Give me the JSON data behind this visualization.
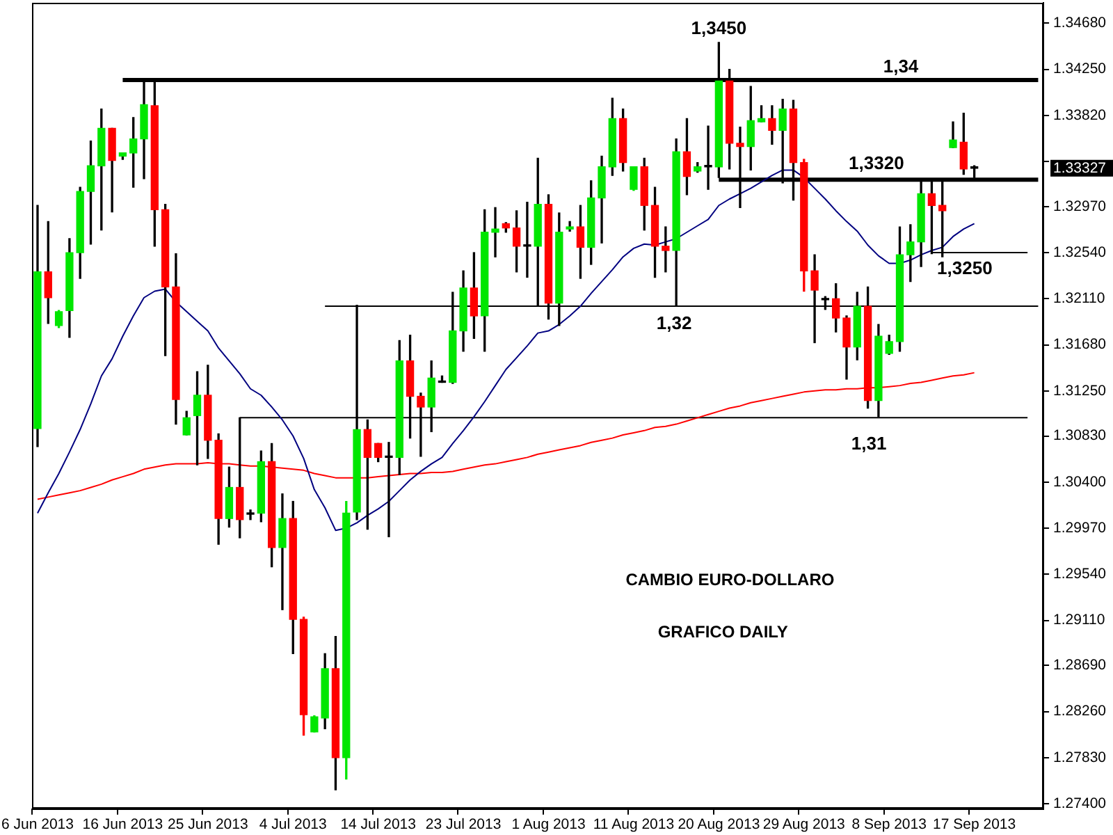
{
  "chart_data": {
    "type": "candlestick",
    "title": "CAMBIO EURO-DOLLARO",
    "subtitle": "GRAFICO DAILY",
    "categories": [
      "6 Jun 2013",
      null,
      null,
      null,
      null,
      null,
      null,
      null,
      "16 Jun 2013",
      null,
      null,
      null,
      null,
      null,
      null,
      null,
      "25 Jun 2013",
      null,
      null,
      null,
      null,
      null,
      null,
      null,
      "4 Jul 2013",
      null,
      null,
      null,
      null,
      null,
      null,
      null,
      "14 Jul 2013",
      null,
      null,
      null,
      null,
      null,
      null,
      null,
      "23 Jul 2013",
      null,
      null,
      null,
      null,
      null,
      null,
      null,
      "1 Aug 2013",
      null,
      null,
      null,
      null,
      null,
      null,
      null,
      "11 Aug 2013",
      null,
      null,
      null,
      null,
      null,
      null,
      null,
      "20 Aug 2013",
      null,
      null,
      null,
      null,
      null,
      null,
      null,
      "29 Aug 2013",
      null,
      null,
      null,
      null,
      null,
      null,
      null,
      "8 Sep 2013",
      null,
      null,
      null,
      null,
      null,
      null,
      null,
      "17 Sep 2013",
      null,
      null,
      null,
      null,
      null,
      null
    ],
    "ohlc": [
      [
        1.309,
        1.3298,
        1.3073,
        1.3236
      ],
      [
        1.3236,
        1.3283,
        1.3188,
        1.3212
      ],
      [
        1.3186,
        1.32,
        1.3184,
        1.3199
      ],
      [
        1.32,
        1.3267,
        1.3175,
        1.3254
      ],
      [
        1.3254,
        1.3315,
        1.323,
        1.3311
      ],
      [
        1.3311,
        1.3358,
        1.3262,
        1.3335
      ],
      [
        1.3335,
        1.3388,
        1.3275,
        1.337
      ],
      [
        1.337,
        1.337,
        1.3292,
        1.334
      ],
      [
        1.3344,
        1.3347,
        1.3341,
        1.3347
      ],
      [
        1.3347,
        1.338,
        1.3315,
        1.336
      ],
      [
        1.336,
        1.3413,
        1.3323,
        1.3392
      ],
      [
        1.3391,
        1.3413,
        1.326,
        1.3294
      ],
      [
        1.3294,
        1.3299,
        1.3158,
        1.3222
      ],
      [
        1.3222,
        1.3253,
        1.3094,
        1.3117
      ],
      [
        1.3084,
        1.3106,
        1.3084,
        1.31
      ],
      [
        1.3102,
        1.3143,
        1.3056,
        1.3121
      ],
      [
        1.3121,
        1.3149,
        1.3062,
        1.3079
      ],
      [
        1.3079,
        1.3085,
        1.2982,
        1.3006
      ],
      [
        1.3006,
        1.3054,
        1.2998,
        1.3035
      ],
      [
        1.3035,
        1.31,
        1.2988,
        1.3005
      ],
      [
        1.301,
        1.3014,
        1.3005,
        1.301
      ],
      [
        1.3011,
        1.3069,
        1.3003,
        1.3059
      ],
      [
        1.3059,
        1.3076,
        1.2961,
        1.2979
      ],
      [
        1.2979,
        1.3029,
        1.2921,
        1.3006
      ],
      [
        1.3006,
        1.3022,
        1.288,
        1.2912
      ],
      [
        1.2912,
        1.2914,
        1.2804,
        1.2823
      ],
      [
        1.2807,
        1.2822,
        1.2807,
        1.2821
      ],
      [
        1.282,
        1.288,
        1.281,
        1.2866
      ],
      [
        1.2866,
        1.2896,
        1.2753,
        1.2783
      ],
      [
        1.2783,
        1.3022,
        1.2763,
        1.3011
      ],
      [
        1.3012,
        1.3205,
        1.3005,
        1.3089
      ],
      [
        1.3089,
        1.3098,
        1.2996,
        1.3063
      ],
      [
        1.3076,
        1.3076,
        1.3059,
        1.3063
      ],
      [
        1.3063,
        1.3077,
        1.2989,
        1.3063
      ],
      [
        1.3063,
        1.3172,
        1.3047,
        1.3153
      ],
      [
        1.3153,
        1.3177,
        1.3081,
        1.312
      ],
      [
        1.312,
        1.3123,
        1.3064,
        1.311
      ],
      [
        1.311,
        1.3153,
        1.3087,
        1.3137
      ],
      [
        1.3133,
        1.3139,
        1.3133,
        1.3133
      ],
      [
        1.3133,
        1.3217,
        1.3132,
        1.3181
      ],
      [
        1.3181,
        1.3237,
        1.3162,
        1.3221
      ],
      [
        1.3221,
        1.3254,
        1.3174,
        1.3195
      ],
      [
        1.3195,
        1.3294,
        1.3162,
        1.3273
      ],
      [
        1.3273,
        1.3296,
        1.325,
        1.3276
      ],
      [
        1.3281,
        1.3282,
        1.3273,
        1.3277
      ],
      [
        1.3277,
        1.3293,
        1.3236,
        1.326
      ],
      [
        1.326,
        1.3301,
        1.3231,
        1.326
      ],
      [
        1.326,
        1.3342,
        1.3205,
        1.3299
      ],
      [
        1.3299,
        1.3308,
        1.3192,
        1.3207
      ],
      [
        1.3207,
        1.3291,
        1.3186,
        1.3273
      ],
      [
        1.3276,
        1.3283,
        1.3274,
        1.3278
      ],
      [
        1.3278,
        1.3298,
        1.323,
        1.3259
      ],
      [
        1.3259,
        1.3321,
        1.3243,
        1.3305
      ],
      [
        1.3305,
        1.3344,
        1.3263,
        1.3334
      ],
      [
        1.3334,
        1.3398,
        1.3326,
        1.3379
      ],
      [
        1.3379,
        1.3388,
        1.333,
        1.3338
      ],
      [
        1.3313,
        1.3334,
        1.3312,
        1.3334
      ],
      [
        1.3334,
        1.3342,
        1.3275,
        1.3298
      ],
      [
        1.3298,
        1.3315,
        1.3231,
        1.326
      ],
      [
        1.326,
        1.3278,
        1.3236,
        1.3256
      ],
      [
        1.3256,
        1.336,
        1.3205,
        1.3348
      ],
      [
        1.3348,
        1.3379,
        1.3308,
        1.3325
      ],
      [
        1.333,
        1.3338,
        1.3329,
        1.3334
      ],
      [
        1.3334,
        1.3372,
        1.3313,
        1.3334
      ],
      [
        1.3334,
        1.345,
        1.3324,
        1.3414
      ],
      [
        1.3414,
        1.3425,
        1.3332,
        1.3356
      ],
      [
        1.3356,
        1.3371,
        1.3296,
        1.3353
      ],
      [
        1.3353,
        1.3409,
        1.3331,
        1.3377
      ],
      [
        1.3376,
        1.3391,
        1.3376,
        1.3379
      ],
      [
        1.3379,
        1.3391,
        1.3355,
        1.3368
      ],
      [
        1.3368,
        1.3397,
        1.3319,
        1.3388
      ],
      [
        1.3388,
        1.3396,
        1.3303,
        1.3338
      ],
      [
        1.3338,
        1.3341,
        1.3218,
        1.3237
      ],
      [
        1.3237,
        1.3252,
        1.317,
        1.3219
      ],
      [
        1.321,
        1.3213,
        1.3201,
        1.321
      ],
      [
        1.3211,
        1.3225,
        1.318,
        1.3193
      ],
      [
        1.3193,
        1.3195,
        1.3136,
        1.3166
      ],
      [
        1.3166,
        1.3217,
        1.3154,
        1.3204
      ],
      [
        1.3204,
        1.3222,
        1.3109,
        1.3116
      ],
      [
        1.3116,
        1.3187,
        1.3101,
        1.3176
      ],
      [
        1.316,
        1.3177,
        1.3159,
        1.3171
      ],
      [
        1.3171,
        1.3278,
        1.3162,
        1.3252
      ],
      [
        1.3252,
        1.328,
        1.3227,
        1.3264
      ],
      [
        1.3264,
        1.3321,
        1.3241,
        1.3309
      ],
      [
        1.3309,
        1.3321,
        1.3253,
        1.3298
      ],
      [
        1.3298,
        1.3321,
        1.325,
        1.3293
      ],
      [
        1.3352,
        1.3376,
        1.3352,
        1.3359
      ],
      [
        1.3357,
        1.3384,
        1.3327,
        1.3332
      ],
      [
        1.3333,
        1.3335,
        1.3324,
        1.33327
      ],
      null,
      null,
      null,
      null,
      null,
      null
    ],
    "colors": [
      "#00e600",
      "#ff0000",
      "#00e600",
      "#00e600",
      "#00e600",
      "#00e600",
      "#00e600",
      "#ff0000",
      "#00e600",
      "#00e600",
      "#00e600",
      "#ff0000",
      "#ff0000",
      "#ff0000",
      "#00e600",
      "#00e600",
      "#ff0000",
      "#ff0000",
      "#00e600",
      "#ff0000",
      "#000000",
      "#00e600",
      "#ff0000",
      "#00e600",
      "#ff0000",
      "#ff0000",
      "#00e600",
      "#00e600",
      "#ff0000",
      "#00e600",
      "#00e600",
      "#ff0000",
      "#ff0000",
      "#000000",
      "#00e600",
      "#ff0000",
      "#ff0000",
      "#00e600",
      "#000000",
      "#00e600",
      "#00e600",
      "#ff0000",
      "#00e600",
      "#00e600",
      "#ff0000",
      "#ff0000",
      "#000000",
      "#00e600",
      "#ff0000",
      "#00e600",
      "#00e600",
      "#ff0000",
      "#00e600",
      "#00e600",
      "#00e600",
      "#ff0000",
      "#00e600",
      "#ff0000",
      "#ff0000",
      "#ff0000",
      "#00e600",
      "#ff0000",
      "#00e600",
      "#000000",
      "#00e600",
      "#ff0000",
      "#ff0000",
      "#00e600",
      "#00e600",
      "#ff0000",
      "#00e600",
      "#ff0000",
      "#ff0000",
      "#ff0000",
      "#000000",
      "#ff0000",
      "#ff0000",
      "#00e600",
      "#ff0000",
      "#00e600",
      "#00e600",
      "#00e600",
      "#00e600",
      "#00e600",
      "#ff0000",
      "#ff0000",
      "#00e600",
      "#ff0000",
      "#000000",
      null,
      null,
      null,
      null,
      null,
      null
    ],
    "series": [
      {
        "type": "line",
        "color": "#000080",
        "values": [
          1.3011,
          1.303,
          1.3048,
          1.3068,
          1.3089,
          1.3113,
          1.3139,
          1.3155,
          1.3176,
          1.3195,
          1.3212,
          1.3218,
          1.322,
          1.3208,
          1.3199,
          1.319,
          1.3181,
          1.3165,
          1.3153,
          1.3141,
          1.3127,
          1.3121,
          1.311,
          1.3098,
          1.3083,
          1.3062,
          1.3033,
          1.3016,
          1.2995,
          1.2997,
          1.3002,
          1.3009,
          1.3015,
          1.3022,
          1.3032,
          1.3042,
          1.305,
          1.3057,
          1.3063,
          1.3076,
          1.3088,
          1.3101,
          1.3115,
          1.313,
          1.3145,
          1.3156,
          1.3167,
          1.3179,
          1.3181,
          1.3187,
          1.3195,
          1.3204,
          1.3216,
          1.3227,
          1.3238,
          1.325,
          1.3258,
          1.3262,
          1.3261,
          1.3264,
          1.3267,
          1.3273,
          1.3279,
          1.3285,
          1.3298,
          1.3304,
          1.3309,
          1.3314,
          1.332,
          1.3326,
          1.3331,
          1.3331,
          1.3324,
          1.3314,
          1.3304,
          1.3293,
          1.3283,
          1.3274,
          1.3261,
          1.3251,
          1.3244,
          1.3244,
          1.3247,
          1.3252,
          1.3256,
          1.3259,
          1.3269,
          1.3276,
          1.3281,
          null,
          null,
          null,
          null,
          null,
          null
        ]
      },
      {
        "type": "line",
        "color": "#ff0000",
        "values": [
          1.3024,
          1.3026,
          1.3028,
          1.303,
          1.3032,
          1.3035,
          1.3038,
          1.3042,
          1.3045,
          1.3048,
          1.3052,
          1.3054,
          1.3056,
          1.3057,
          1.3057,
          1.3057,
          1.3058,
          1.3057,
          1.3057,
          1.3056,
          1.3055,
          1.3055,
          1.3054,
          1.3053,
          1.3052,
          1.3051,
          1.3048,
          1.3046,
          1.3044,
          1.3044,
          1.3044,
          1.3044,
          1.3045,
          1.3046,
          1.3047,
          1.3048,
          1.3048,
          1.3049,
          1.3049,
          1.305,
          1.3052,
          1.3054,
          1.3056,
          1.3057,
          1.3059,
          1.3061,
          1.3063,
          1.3066,
          1.3068,
          1.307,
          1.3072,
          1.3074,
          1.3077,
          1.3079,
          1.3081,
          1.3084,
          1.3086,
          1.3088,
          1.3091,
          1.3092,
          1.3094,
          1.3097,
          1.31,
          1.3103,
          1.3106,
          1.3109,
          1.3111,
          1.3114,
          1.3116,
          1.3118,
          1.312,
          1.3122,
          1.3124,
          1.3125,
          1.3126,
          1.3126,
          1.3127,
          1.3127,
          1.3128,
          1.3128,
          1.3129,
          1.313,
          1.3132,
          1.3133,
          1.3135,
          1.3137,
          1.3139,
          1.314,
          1.3142,
          null,
          null,
          null,
          null,
          null,
          null
        ]
      },
      {
        "type": "line",
        "name": "1,34",
        "color": "#000000",
        "values": [
          null,
          null,
          null,
          null,
          null,
          null,
          null,
          null,
          1.3415,
          1.3415,
          1.3415,
          1.3415,
          1.3415,
          1.3415,
          1.3415,
          1.3415,
          1.3415,
          1.3415,
          1.3415,
          1.3415,
          1.3415,
          1.3415,
          1.3415,
          1.3415,
          1.3415,
          1.3415,
          1.3415,
          1.3415,
          1.3415,
          1.3415,
          1.3415,
          1.3415,
          1.3415,
          1.3415,
          1.3415,
          1.3415,
          1.3415,
          1.3415,
          1.3415,
          1.3415,
          1.3415,
          1.3415,
          1.3415,
          1.3415,
          1.3415,
          1.3415,
          1.3415,
          1.3415,
          1.3415,
          1.3415,
          1.3415,
          1.3415,
          1.3415,
          1.3415,
          1.3415,
          1.3415,
          1.3415,
          1.3415,
          1.3415,
          1.3415,
          1.3415,
          1.3415,
          1.3415,
          1.3415,
          1.3415,
          1.3415,
          1.3415,
          1.3415,
          1.3415,
          1.3415,
          1.3415,
          1.3415,
          1.3415,
          1.3415,
          1.3415,
          1.3415,
          1.3415,
          1.3415,
          1.3415,
          1.3415,
          1.3415,
          1.3415,
          1.3415,
          1.3415,
          1.3415,
          1.3415,
          1.3415,
          1.3415,
          1.3415,
          1.3415,
          1.3415,
          1.3415,
          1.3415,
          1.3415,
          1.3415
        ]
      },
      {
        "type": "line",
        "name": "1,3320",
        "color": "#000000",
        "values": [
          null,
          null,
          null,
          null,
          null,
          null,
          null,
          null,
          null,
          null,
          null,
          null,
          null,
          null,
          null,
          null,
          null,
          null,
          null,
          null,
          null,
          null,
          null,
          null,
          null,
          null,
          null,
          null,
          null,
          null,
          null,
          null,
          null,
          null,
          null,
          null,
          null,
          null,
          null,
          null,
          null,
          null,
          null,
          null,
          null,
          null,
          null,
          null,
          null,
          null,
          null,
          null,
          null,
          null,
          null,
          null,
          null,
          null,
          null,
          null,
          null,
          null,
          null,
          null,
          1.3322,
          1.3322,
          1.3322,
          1.3322,
          1.3322,
          1.3322,
          1.3322,
          1.3322,
          1.3322,
          1.3322,
          1.3322,
          1.3322,
          1.3322,
          1.3322,
          1.3322,
          1.3322,
          1.3322,
          1.3322,
          1.3322,
          1.3322,
          1.3322,
          1.3322,
          1.3322,
          1.3322,
          1.3322,
          1.3322,
          1.3322,
          1.3322,
          1.3322,
          1.3322,
          1.3322
        ]
      },
      {
        "type": "line",
        "name": "1,3250",
        "color": "#000000",
        "values": [
          null,
          null,
          null,
          null,
          null,
          null,
          null,
          null,
          null,
          null,
          null,
          null,
          null,
          null,
          null,
          null,
          null,
          null,
          null,
          null,
          null,
          null,
          null,
          null,
          null,
          null,
          null,
          null,
          null,
          null,
          null,
          null,
          null,
          null,
          null,
          null,
          null,
          null,
          null,
          null,
          null,
          null,
          null,
          null,
          null,
          null,
          null,
          null,
          null,
          null,
          null,
          null,
          null,
          null,
          null,
          null,
          null,
          null,
          null,
          null,
          null,
          null,
          null,
          null,
          null,
          null,
          null,
          null,
          null,
          null,
          null,
          null,
          null,
          null,
          null,
          null,
          null,
          null,
          null,
          null,
          null,
          null,
          null,
          null,
          1.3254,
          1.3254,
          1.3254,
          1.3254,
          1.3254,
          1.3254,
          1.3254,
          1.3254,
          1.3254,
          1.3254,
          null
        ]
      },
      {
        "type": "line",
        "name": "1,32",
        "color": "#000000",
        "values": [
          null,
          null,
          null,
          null,
          null,
          null,
          null,
          null,
          null,
          null,
          null,
          null,
          null,
          null,
          null,
          null,
          null,
          null,
          null,
          null,
          null,
          null,
          null,
          null,
          null,
          null,
          null,
          1.3204,
          1.3204,
          1.3204,
          1.3204,
          1.3204,
          1.3204,
          1.3204,
          1.3204,
          1.3204,
          1.3204,
          1.3204,
          1.3204,
          1.3204,
          1.3204,
          1.3204,
          1.3204,
          1.3204,
          1.3204,
          1.3204,
          1.3204,
          1.3204,
          1.3204,
          1.3204,
          1.3204,
          1.3204,
          1.3204,
          1.3204,
          1.3204,
          1.3204,
          1.3204,
          1.3204,
          1.3204,
          1.3204,
          1.3204,
          1.3204,
          1.3204,
          1.3204,
          1.3204,
          1.3204,
          1.3204,
          1.3204,
          1.3204,
          1.3204,
          1.3204,
          1.3204,
          1.3204,
          1.3204,
          1.3204,
          1.3204,
          1.3204,
          1.3204,
          1.3204,
          1.3204,
          1.3204,
          1.3204,
          1.3204,
          1.3204,
          1.3204,
          1.3204,
          1.3204,
          1.3204,
          1.3204,
          1.3204,
          1.3204,
          1.3204,
          1.3204,
          1.3204,
          1.3204
        ]
      },
      {
        "type": "line",
        "name": "1,31",
        "color": "#000000",
        "values": [
          null,
          null,
          null,
          null,
          null,
          null,
          null,
          null,
          null,
          null,
          null,
          null,
          null,
          null,
          null,
          null,
          null,
          null,
          null,
          1.31,
          1.31,
          1.31,
          1.31,
          1.31,
          1.31,
          1.31,
          1.31,
          1.31,
          1.31,
          1.31,
          1.31,
          1.31,
          1.31,
          1.31,
          1.31,
          1.31,
          1.31,
          1.31,
          1.31,
          1.31,
          1.31,
          1.31,
          1.31,
          1.31,
          1.31,
          1.31,
          1.31,
          1.31,
          1.31,
          1.31,
          1.31,
          1.31,
          1.31,
          1.31,
          1.31,
          1.31,
          1.31,
          1.31,
          1.31,
          1.31,
          1.31,
          1.31,
          1.31,
          1.31,
          1.31,
          1.31,
          1.31,
          1.31,
          1.31,
          1.31,
          1.31,
          1.31,
          1.31,
          1.31,
          1.31,
          1.31,
          1.31,
          1.31,
          1.31,
          1.31,
          1.31,
          1.31,
          1.31,
          1.31,
          1.31,
          1.31,
          1.31,
          1.31,
          1.31,
          1.31,
          1.31,
          1.31,
          1.31,
          1.31,
          null
        ]
      }
    ],
    "annotations": [
      {
        "text": "1,3450",
        "x": "20 Aug 2013",
        "y": 1.345
      },
      "1.33327"
    ],
    "ylim": [
      1.2735,
      1.3487
    ],
    "yticks": [
      {
        "value": 1.3468,
        "label": "1.34680"
      },
      {
        "value": 1.3425,
        "label": "1.34250"
      },
      {
        "value": 1.3382,
        "label": "1.33820"
      },
      {
        "value": 1.3339,
        "label": null
      },
      {
        "value": 1.3297,
        "label": "1.32970"
      },
      {
        "value": 1.3254,
        "label": "1.32540"
      },
      {
        "value": 1.3211,
        "label": "1.32110"
      },
      {
        "value": 1.3168,
        "label": "1.31680"
      },
      {
        "value": 1.3125,
        "label": "1.31250"
      },
      {
        "value": 1.3083,
        "label": "1.30830"
      },
      {
        "value": 1.304,
        "label": "1.30400"
      },
      {
        "value": 1.2997,
        "label": "1.29970"
      },
      {
        "value": 1.2954,
        "label": "1.29540"
      },
      {
        "value": 1.2911,
        "label": "1.29110"
      },
      {
        "value": 1.2869,
        "label": "1.28690"
      },
      {
        "value": 1.2826,
        "label": "1.28260"
      },
      {
        "value": 1.2783,
        "label": "1.27830"
      },
      {
        "value": 1.274,
        "label": "1.27400"
      }
    ]
  }
}
